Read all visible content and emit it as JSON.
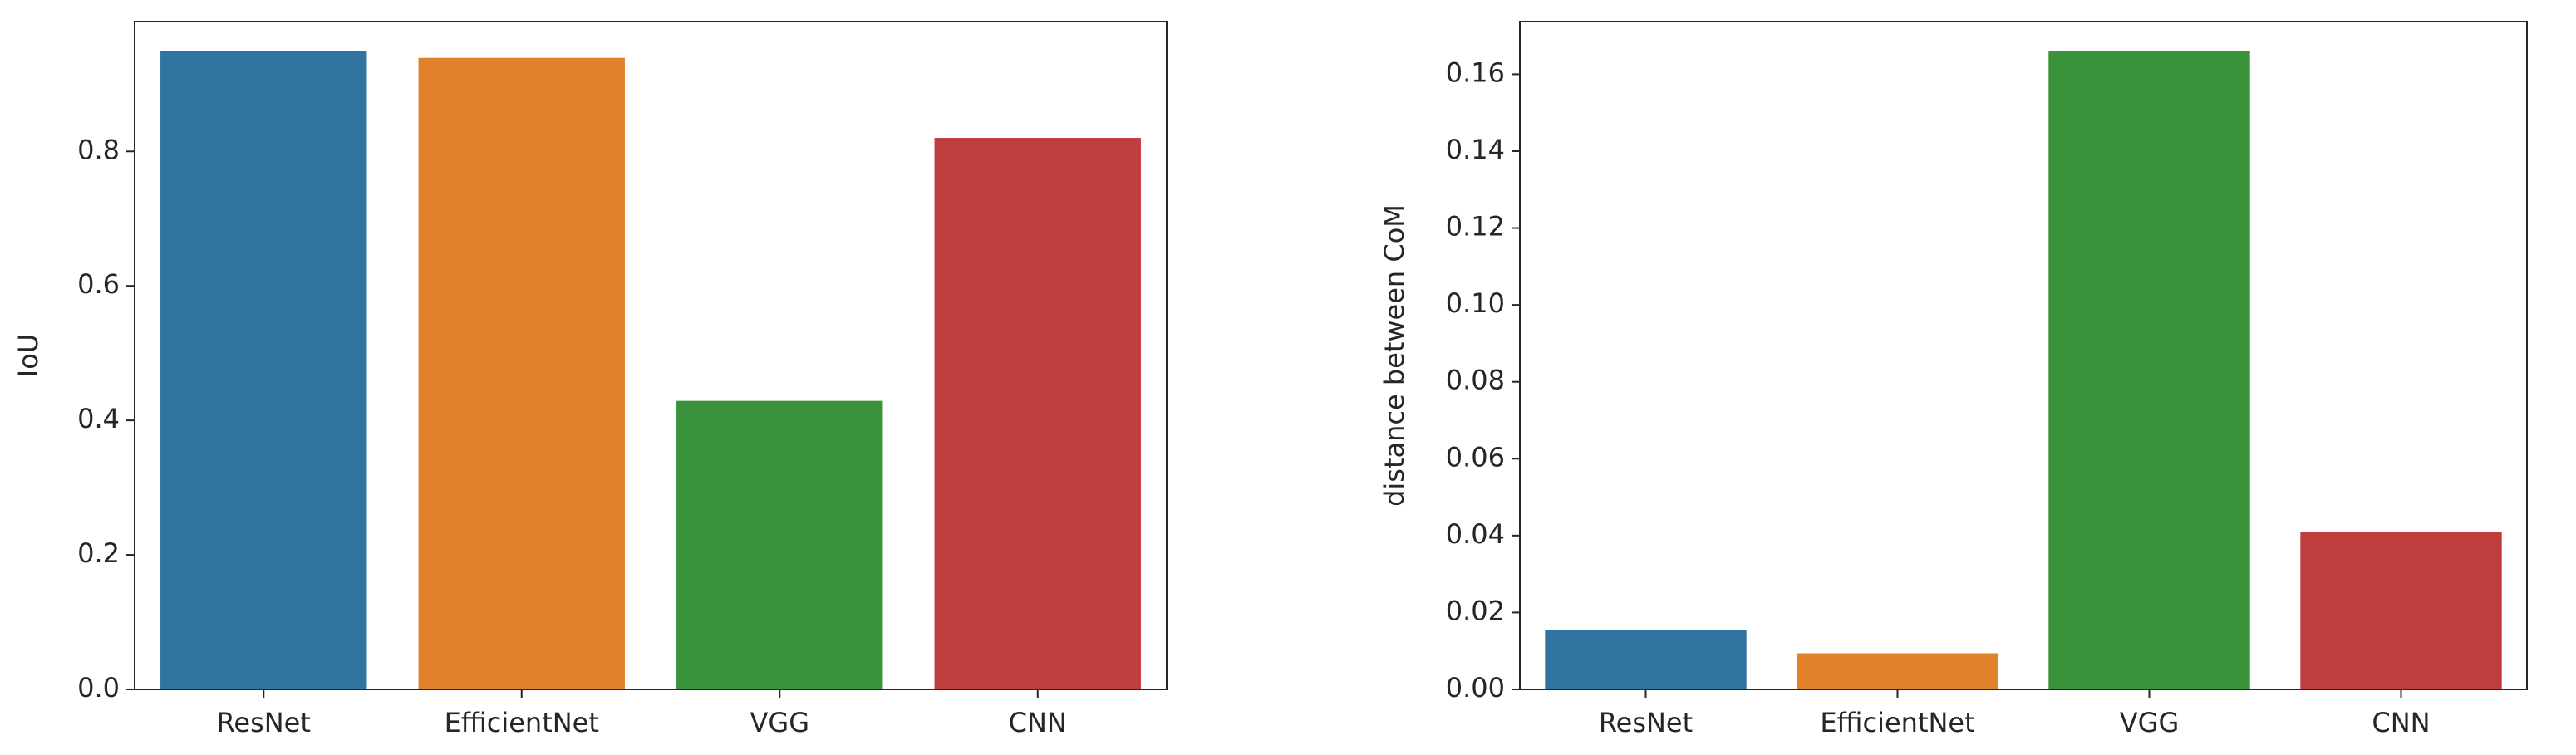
{
  "chart_data": [
    {
      "type": "bar",
      "y_label": "IoU",
      "categories": [
        "ResNet",
        "EfficientNet",
        "VGG",
        "CNN"
      ],
      "values": [
        0.949,
        0.939,
        0.429,
        0.82
      ],
      "colors": [
        "#3274a1",
        "#e1812c",
        "#3a923a",
        "#c03d3e"
      ],
      "ylim": [
        0,
        0.993
      ],
      "yticks": [
        {
          "value": 0,
          "label": "0.0"
        },
        0.2,
        0.4,
        0.6,
        0.8
      ],
      "grid": false
    },
    {
      "type": "bar",
      "y_label": "distance between CoM",
      "categories": [
        "ResNet",
        "EfficientNet",
        "VGG",
        "CNN"
      ],
      "values": [
        0.0154,
        0.0094,
        0.166,
        0.041
      ],
      "colors": [
        "#3274a1",
        "#e1812c",
        "#3a923a",
        "#c03d3e"
      ],
      "ylim": [
        0,
        0.1737
      ],
      "yticks": [
        {
          "value": 0,
          "label": "0.00"
        },
        0.02,
        0.04,
        0.06,
        0.08,
        {
          "value": 0.1,
          "label": "0.10"
        },
        0.12,
        0.14,
        0.16
      ],
      "grid": false
    }
  ]
}
